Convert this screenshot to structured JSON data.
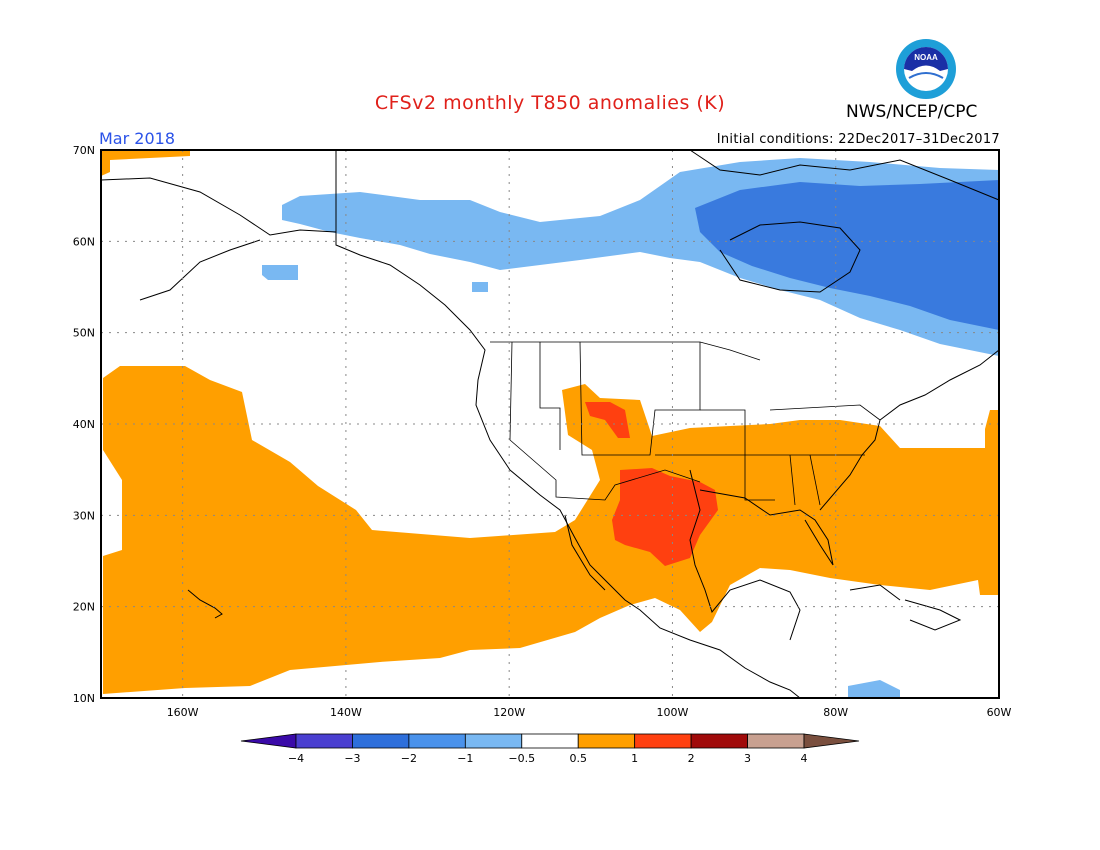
{
  "header": {
    "title": "CFSv2 monthly T850 anomalies (K)",
    "org": "NWS/NCEP/CPC",
    "logo_text": "NOAA",
    "month": "Mar 2018",
    "initial_conditions": "Initial conditions: 22Dec2017–31Dec2017"
  },
  "colors": {
    "title": "#e0201a",
    "month": "#2a52e8",
    "land_lines": "#000000",
    "grid": "#888888"
  },
  "map": {
    "projection": "equirectangular",
    "lon_range": [
      -170,
      -60
    ],
    "lat_range": [
      10,
      70
    ],
    "lon_ticks": [
      "160W",
      "140W",
      "120W",
      "100W",
      "80W",
      "60W"
    ],
    "lat_ticks": [
      "70N",
      "60N",
      "50N",
      "40N",
      "30N",
      "20N",
      "10N"
    ],
    "anomaly_regions": [
      {
        "category": "-1 to -0.5",
        "area": "Alaska, northern Canada"
      },
      {
        "category": "-2 to -1",
        "area": "Hudson Bay, Quebec, Labrador"
      },
      {
        "category": "0.5 to 1",
        "area": "Central/Eastern Pacific, Mexico, southern and eastern United States, western Atlantic"
      },
      {
        "category": "1 to 2",
        "area": "Texas, northern Mexico, Colorado"
      }
    ]
  },
  "colorbar": {
    "labels": [
      "−4",
      "−3",
      "−2",
      "−1",
      "−0.5",
      "0.5",
      "1",
      "2",
      "3",
      "4"
    ],
    "colors": [
      "#3a0aa8",
      "#4a3fd0",
      "#2e6fdb",
      "#4a92eb",
      "#79b8f2",
      "#ffffff",
      "#ff9f00",
      "#ff4010",
      "#a00a0a",
      "#c8a090",
      "#7a4f3e"
    ]
  }
}
